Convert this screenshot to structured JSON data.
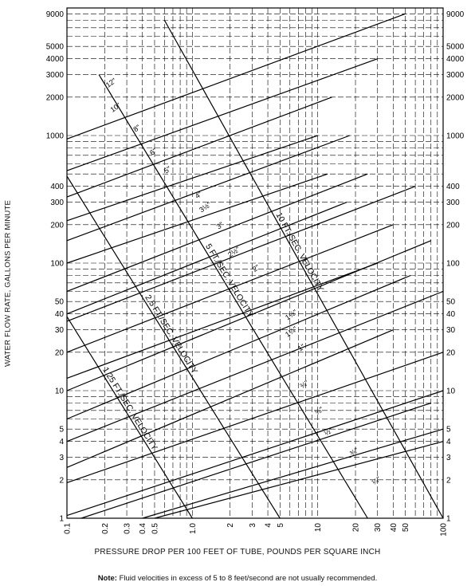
{
  "chart_data": {
    "type": "line",
    "x_scale": "log",
    "y_scale": "log",
    "xlim": [
      0.1,
      100
    ],
    "ylim": [
      1,
      10000
    ],
    "xlabel": "PRESSURE DROP PER 100 FEET OF TUBE, POUNDS PER SQUARE INCH",
    "ylabel": "WATER FLOW RATE, GALLONS PER MINUTE",
    "x_ticks": [
      {
        "value": 0.1,
        "label": "0.1"
      },
      {
        "value": 0.2,
        "label": "0.2"
      },
      {
        "value": 0.3,
        "label": "0.3"
      },
      {
        "value": 0.4,
        "label": "0.4"
      },
      {
        "value": 0.5,
        "label": "0.5"
      },
      {
        "value": 1,
        "label": "1.0"
      },
      {
        "value": 2,
        "label": "2"
      },
      {
        "value": 3,
        "label": "3"
      },
      {
        "value": 4,
        "label": "4"
      },
      {
        "value": 5,
        "label": "5"
      },
      {
        "value": 10,
        "label": "10"
      },
      {
        "value": 20,
        "label": "20"
      },
      {
        "value": 30,
        "label": "30"
      },
      {
        "value": 40,
        "label": "40"
      },
      {
        "value": 50,
        "label": "50"
      },
      {
        "value": 100,
        "label": "100"
      }
    ],
    "y_ticks": [
      {
        "value": 1,
        "label": "1"
      },
      {
        "value": 2,
        "label": "2"
      },
      {
        "value": 3,
        "label": "3"
      },
      {
        "value": 4,
        "label": "4"
      },
      {
        "value": 5,
        "label": "5"
      },
      {
        "value": 10,
        "label": "10"
      },
      {
        "value": 20,
        "label": "20"
      },
      {
        "value": 30,
        "label": "30"
      },
      {
        "value": 40,
        "label": "40"
      },
      {
        "value": 50,
        "label": "50"
      },
      {
        "value": 100,
        "label": "100"
      },
      {
        "value": 200,
        "label": "200"
      },
      {
        "value": 300,
        "label": "300"
      },
      {
        "value": 400,
        "label": "400"
      },
      {
        "value": 1000,
        "label": "1000"
      },
      {
        "value": 2000,
        "label": "2000"
      },
      {
        "value": 3000,
        "label": "3000"
      },
      {
        "value": 4000,
        "label": "4000"
      },
      {
        "value": 5000,
        "label": "5000"
      },
      {
        "value": 9000,
        "label": "9000"
      }
    ],
    "grid": "dashed",
    "tube_lines": [
      {
        "x": [
          0.1,
          50
        ],
        "y": [
          940,
          9000
        ]
      },
      {
        "x": [
          0.1,
          30
        ],
        "y": [
          530,
          4000
        ]
      },
      {
        "x": [
          0.1,
          13
        ],
        "y": [
          330,
          2000
        ]
      },
      {
        "x": [
          0.1,
          10
        ],
        "y": [
          215,
          1000
        ]
      },
      {
        "x": [
          0.1,
          18
        ],
        "y": [
          150,
          1000
        ]
      },
      {
        "x": [
          0.1,
          12
        ],
        "y": [
          100,
          500
        ]
      },
      {
        "x": [
          0.1,
          25
        ],
        "y": [
          60,
          500
        ]
      },
      {
        "x": [
          0.1,
          17
        ],
        "y": [
          40,
          300
        ]
      },
      {
        "x": [
          0.1,
          60
        ],
        "y": [
          35,
          400
        ]
      },
      {
        "x": [
          0.1,
          40
        ],
        "y": [
          20,
          200
        ]
      },
      {
        "x": [
          0.1,
          30
        ],
        "y": [
          12.5,
          100
        ]
      },
      {
        "x": [
          0.1,
          80
        ],
        "y": [
          10,
          150
        ]
      },
      {
        "x": [
          0.1,
          55
        ],
        "y": [
          6,
          80
        ]
      },
      {
        "x": [
          0.1,
          100
        ],
        "y": [
          4,
          60
        ]
      },
      {
        "x": [
          0.1,
          40
        ],
        "y": [
          2.5,
          30
        ]
      },
      {
        "x": [
          0.1,
          100
        ],
        "y": [
          1.9,
          20
        ]
      },
      {
        "x": [
          0.1,
          100
        ],
        "y": [
          1.05,
          10
        ]
      },
      {
        "x": [
          0.13,
          80
        ],
        "y": [
          1,
          8
        ]
      },
      {
        "x": [
          0.4,
          100
        ],
        "y": [
          1,
          5
        ]
      },
      {
        "x": [
          0.5,
          100
        ],
        "y": [
          1,
          4
        ]
      }
    ],
    "velocity_lines": [
      {
        "label": "1.25 FT./SEC. VELOCITY",
        "x": [
          0.1,
          1.0
        ],
        "y": [
          38,
          1
        ]
      },
      {
        "label": "2.5 FT./SEC. VELOCITY",
        "x": [
          0.1,
          5
        ],
        "y": [
          480,
          1
        ]
      },
      {
        "label": "5 FT./SEC. VELOCITY",
        "x": [
          0.18,
          25
        ],
        "y": [
          3000,
          1
        ]
      },
      {
        "label": "10 FT./SEC. VELOCITY",
        "x": [
          0.6,
          100
        ],
        "y": [
          8000,
          1
        ]
      }
    ],
    "annotations": [
      {
        "text": "12\"",
        "x": 0.23,
        "y": 2500
      },
      {
        "text": "10\"",
        "x": 0.25,
        "y": 1600
      },
      {
        "text": "8\"",
        "x": 0.37,
        "y": 1100
      },
      {
        "text": "6\"",
        "x": 0.5,
        "y": 720
      },
      {
        "text": "5\"",
        "x": 0.65,
        "y": 520
      },
      {
        "text": "4\"",
        "x": 1.15,
        "y": 330
      },
      {
        "text": "3½\"",
        "x": 1.3,
        "y": 265
      },
      {
        "text": "3\"",
        "x": 1.7,
        "y": 190
      },
      {
        "text": "2½\"",
        "x": 2.2,
        "y": 118
      },
      {
        "text": "2\"",
        "x": 3.3,
        "y": 88
      },
      {
        "text": "1½\"",
        "x": 6.3,
        "y": 38
      },
      {
        "text": "1¼\"",
        "x": 6.3,
        "y": 28
      },
      {
        "text": "1\"",
        "x": 7.6,
        "y": 21
      },
      {
        "text": "¾\"",
        "x": 8.0,
        "y": 10.8
      },
      {
        "text": "⅝\"",
        "x": 10.5,
        "y": 6.7
      },
      {
        "text": "½\"",
        "x": 12.5,
        "y": 4.6
      },
      {
        "text": "⅜\"",
        "x": 20,
        "y": 3.2
      },
      {
        "text": "¼\"",
        "x": 30,
        "y": 1.9
      }
    ]
  },
  "note": {
    "bold": "Note:",
    "text": " Fluid velocities in excess of 5 to 8 feet/second are not usually recommended."
  }
}
